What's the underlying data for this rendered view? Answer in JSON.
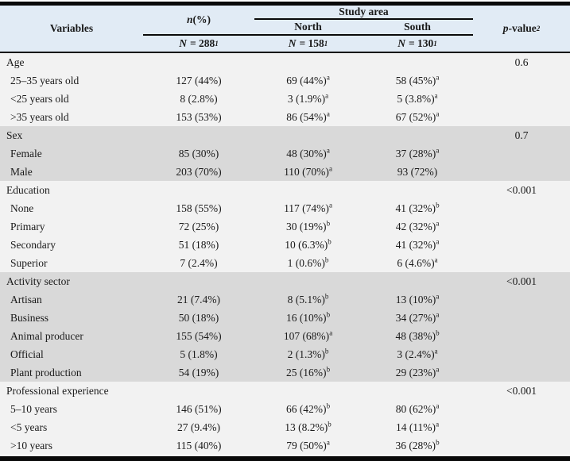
{
  "table": {
    "header": {
      "variables_label": "Variables",
      "n_italic": "n",
      "n_rest": " (%)",
      "study_area_label": "Study area",
      "north_label": "North",
      "south_label": "South",
      "p_italic": "p",
      "p_rest": "-value",
      "p_sup": "2",
      "n_total": {
        "letter": "N",
        "value": "= 288",
        "sup": "1"
      },
      "n_north": {
        "letter": "N",
        "value": "= 158",
        "sup": "1"
      },
      "n_south": {
        "letter": "N",
        "value": "= 130",
        "sup": "1"
      }
    },
    "groups": [
      {
        "label": "Age",
        "p_value": "0.6",
        "shade": "light",
        "rows": [
          {
            "label": "25–35 years old",
            "total": "127 (44%)",
            "north": "69 (44%)",
            "north_sup": "a",
            "south": "58 (45%)",
            "south_sup": "a"
          },
          {
            "label": "<25 years old",
            "total": "8 (2.8%)",
            "north": "3 (1.9%)",
            "north_sup": "a",
            "south": "5 (3.8%)",
            "south_sup": "a"
          },
          {
            "label": ">35 years old",
            "total": "153 (53%)",
            "north": "86 (54%)",
            "north_sup": "a",
            "south": "67 (52%)",
            "south_sup": "a"
          }
        ]
      },
      {
        "label": "Sex",
        "p_value": "0.7",
        "shade": "gray",
        "rows": [
          {
            "label": "Female",
            "total": "85 (30%)",
            "north": "48 (30%)",
            "north_sup": "a",
            "south": "37 (28%)",
            "south_sup": "a"
          },
          {
            "label": "Male",
            "total": "203 (70%)",
            "north": "110 (70%)",
            "north_sup": "a",
            "south": "93 (72%)",
            "south_sup": ""
          }
        ]
      },
      {
        "label": "Education",
        "p_value": "<0.001",
        "shade": "light",
        "rows": [
          {
            "label": "None",
            "total": "158 (55%)",
            "north": "117 (74%)",
            "north_sup": "a",
            "south": "41 (32%)",
            "south_sup": "b"
          },
          {
            "label": "Primary",
            "total": "72 (25%)",
            "north": "30 (19%)",
            "north_sup": "b",
            "south": "42 (32%)",
            "south_sup": "a"
          },
          {
            "label": "Secondary",
            "total": "51 (18%)",
            "north": "10 (6.3%)",
            "north_sup": "b",
            "south": "41 (32%)",
            "south_sup": "a"
          },
          {
            "label": "Superior",
            "total": "7 (2.4%)",
            "north": "1 (0.6%)",
            "north_sup": "b",
            "south": "6 (4.6%)",
            "south_sup": "a"
          }
        ]
      },
      {
        "label": "Activity sector",
        "p_value": "<0.001",
        "shade": "gray",
        "rows": [
          {
            "label": "Artisan",
            "total": "21 (7.4%)",
            "north": "8 (5.1%)",
            "north_sup": "b",
            "south": "13 (10%)",
            "south_sup": "a"
          },
          {
            "label": "Business",
            "total": "50 (18%)",
            "north": "16 (10%)",
            "north_sup": "b",
            "south": "34 (27%)",
            "south_sup": "a"
          },
          {
            "label": "Animal producer",
            "total": "155 (54%)",
            "north": "107 (68%)",
            "north_sup": "a",
            "south": "48 (38%)",
            "south_sup": "b"
          },
          {
            "label": "Official",
            "total": "5 (1.8%)",
            "north": "2 (1.3%)",
            "north_sup": "b",
            "south": "3 (2.4%)",
            "south_sup": "a"
          },
          {
            "label": "Plant production",
            "total": "54 (19%)",
            "north": "25 (16%)",
            "north_sup": "b",
            "south": "29 (23%)",
            "south_sup": "a"
          }
        ]
      },
      {
        "label": "Professional experience",
        "p_value": "<0.001",
        "shade": "light",
        "rows": [
          {
            "label": "5–10 years",
            "total": "146 (51%)",
            "north": "66 (42%)",
            "north_sup": "b",
            "south": "80 (62%)",
            "south_sup": "a"
          },
          {
            "label": "<5 years",
            "total": "27 (9.4%)",
            "north": "13 (8.2%)",
            "north_sup": "b",
            "south": "14 (11%)",
            "south_sup": "a"
          },
          {
            "label": ">10 years",
            "total": "115 (40%)",
            "north": "79 (50%)",
            "north_sup": "a",
            "south": "36 (28%)",
            "south_sup": "b"
          }
        ]
      }
    ]
  },
  "colors": {
    "header_bg": "#e1ebf5",
    "row_light": "#f2f2f2",
    "row_gray": "#d9d9d9",
    "border": "#0a0a0a",
    "text": "#1a1a1a"
  }
}
